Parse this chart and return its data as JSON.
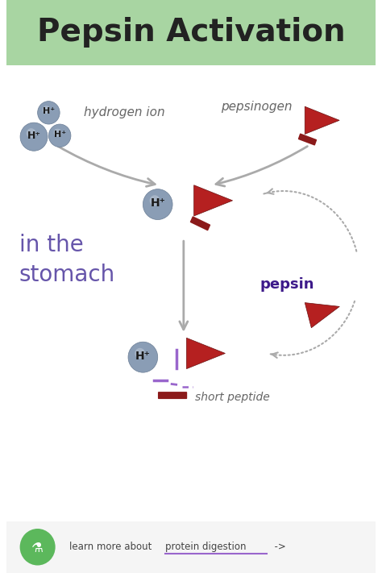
{
  "title": "Pepsin Activation",
  "title_fontsize": 28,
  "title_bg_color": "#a8d5a2",
  "bg_color": "#ffffff",
  "h_ion_color": "#8a9db5",
  "arrow_color": "#aaaaaa",
  "pepsin_color": "#b52020",
  "peptide_bar_color": "#8b1a1a",
  "in_stomach_color": "#6655aa",
  "pepsin_label_color": "#3d1a8a",
  "footer_bg_color": "#5cb85c",
  "hydrogen_ion_label": "hydrogen ion",
  "pepsinogen_label": "pepsinogen",
  "in_the_stomach_label": "in the\nstomach",
  "pepsin_label": "pepsin",
  "short_peptide_label": "short peptide",
  "fig_width": 4.74,
  "fig_height": 7.11,
  "xlim": [
    0,
    10
  ],
  "ylim": [
    0,
    15
  ]
}
